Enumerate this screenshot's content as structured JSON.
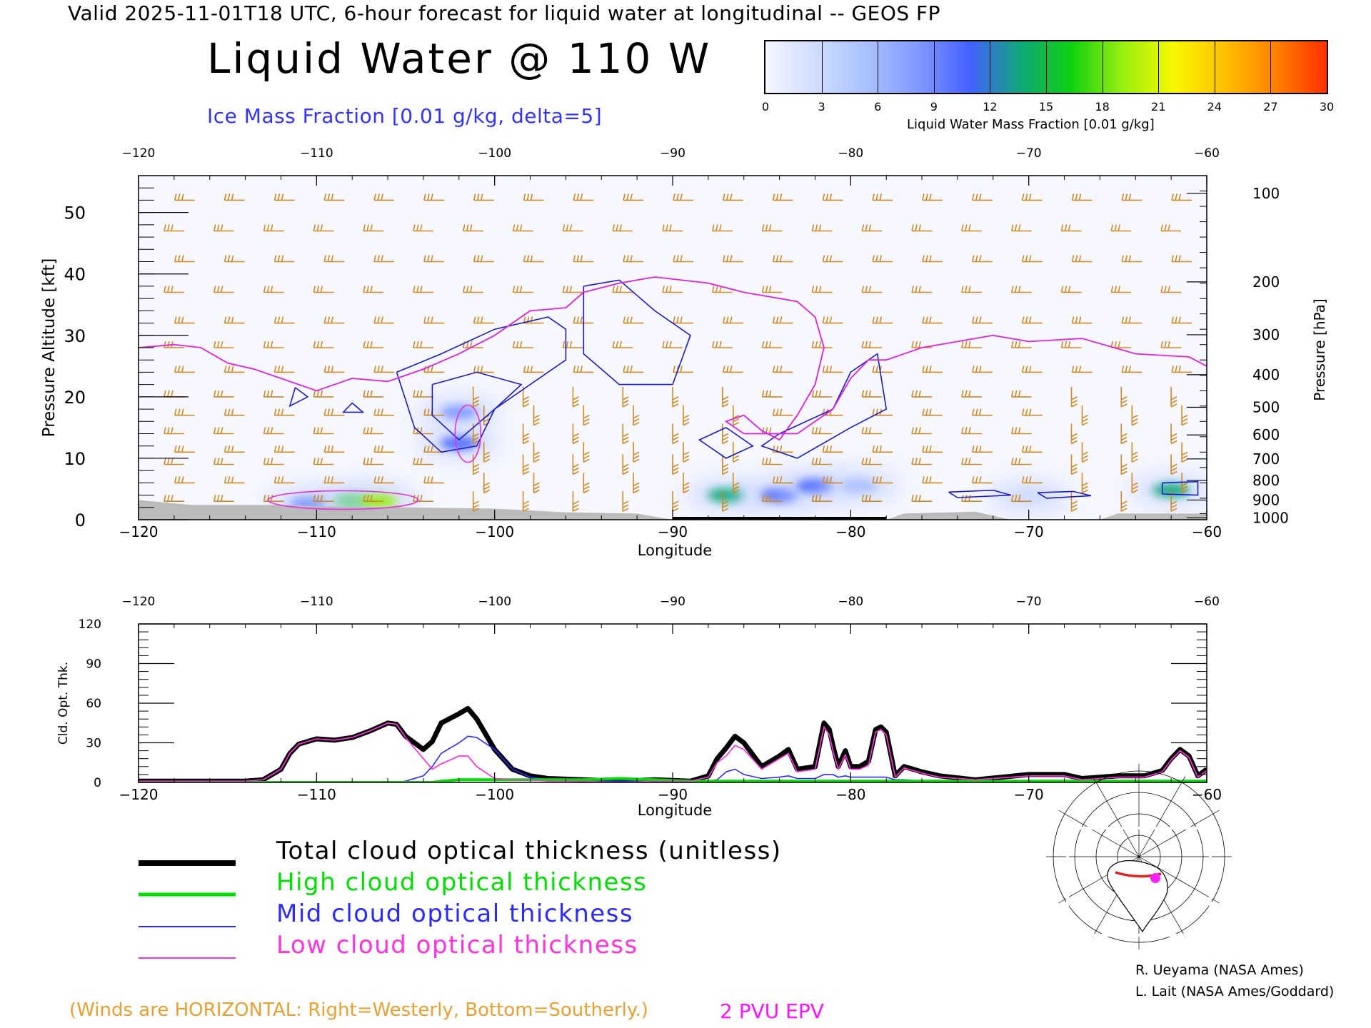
{
  "header": {
    "line": "Valid 2025-11-01T18 UTC, 6-hour forecast for liquid water at longitudinal -- GEOS FP",
    "title": "Liquid Water @ 110 W",
    "ice_label": "Ice Mass Fraction [0.01 g/kg, delta=5]"
  },
  "colorbar": {
    "ticks": [
      "0",
      "3",
      "6",
      "9",
      "12",
      "15",
      "18",
      "21",
      "24",
      "27",
      "30"
    ],
    "unit_label": "Liquid Water Mass Fraction [0.01 g/kg]",
    "colors": [
      "#f4f6ff",
      "#cfdcff",
      "#a8c0ff",
      "#7f99ff",
      "#4461ff",
      "#0fa878",
      "#10d010",
      "#98ef10",
      "#f8f800",
      "#ffc000",
      "#ff8000",
      "#ff3000"
    ]
  },
  "legend": {
    "total": "Total cloud optical thickness (unitless)",
    "high": "High cloud optical thickness",
    "mid": "Mid cloud optical thickness",
    "low": "Low cloud optical thickness"
  },
  "footer": {
    "winds_note": "(Winds are HORIZONTAL: Right=Westerly, Bottom=Southerly.)",
    "epv_label": "2 PVU EPV",
    "credit_1": "R. Ueyama (NASA Ames)",
    "credit_2": "L. Lait (NASA Ames/Goddard)"
  },
  "colors": {
    "total": "#000000",
    "high": "#00e000",
    "mid": "#2a2aff",
    "low": "#ff30e0",
    "epv": "#e020e0",
    "barb": "#d08a20",
    "ice_contour": "#1a1acc",
    "terrain": "#bbbbbb"
  },
  "chart_data": [
    {
      "type": "heatmap",
      "title": "Liquid Water @ 110 W",
      "xlabel": "Longitude",
      "ylabel": "Pressure Altitude [kft]",
      "y2label": "Pressure [hPa]",
      "xlim": [
        -120,
        -60
      ],
      "ylim": [
        0,
        56
      ],
      "x_ticks": [
        "-120",
        "-110",
        "-100",
        "-90",
        "-80",
        "-70",
        "-60"
      ],
      "y_ticks": [
        "0",
        "10",
        "20",
        "30",
        "40",
        "50"
      ],
      "y2_ticks": [
        {
          "label": "100",
          "kft": 53.1
        },
        {
          "label": "200",
          "kft": 38.7
        },
        {
          "label": "300",
          "kft": 30.1
        },
        {
          "label": "400",
          "kft": 23.6
        },
        {
          "label": "500",
          "kft": 18.3
        },
        {
          "label": "600",
          "kft": 13.8
        },
        {
          "label": "700",
          "kft": 9.9
        },
        {
          "label": "800",
          "kft": 6.4
        },
        {
          "label": "900",
          "kft": 3.2
        },
        {
          "label": "1000",
          "kft": 0.3
        }
      ],
      "liquid_water": [
        {
          "lon": -108,
          "kft": 3.0,
          "value": 15
        },
        {
          "lon": -106.5,
          "kft": 3.0,
          "value": 20
        },
        {
          "lon": -110.5,
          "kft": 2.6,
          "value": 8
        },
        {
          "lon": -102,
          "kft": 12.5,
          "value": 12
        },
        {
          "lon": -102,
          "kft": 17.5,
          "value": 8
        },
        {
          "lon": -87,
          "kft": 4.0,
          "value": 14
        },
        {
          "lon": -84,
          "kft": 4.0,
          "value": 10
        },
        {
          "lon": -82,
          "kft": 5.5,
          "value": 12
        },
        {
          "lon": -79.5,
          "kft": 5.5,
          "value": 6
        },
        {
          "lon": -62,
          "kft": 4.8,
          "value": 14
        },
        {
          "lon": -70,
          "kft": 3.8,
          "value": 4
        }
      ],
      "epv_2pvu_kft": [
        {
          "lon": -120,
          "kft": 28
        },
        {
          "lon": -118,
          "kft": 28.5
        },
        {
          "lon": -116.5,
          "kft": 28
        },
        {
          "lon": -115,
          "kft": 25.5
        },
        {
          "lon": -113.5,
          "kft": 24.5
        },
        {
          "lon": -112,
          "kft": 23
        },
        {
          "lon": -110,
          "kft": 21
        },
        {
          "lon": -108,
          "kft": 23
        },
        {
          "lon": -106,
          "kft": 22.5
        },
        {
          "lon": -104,
          "kft": 24.5
        },
        {
          "lon": -102,
          "kft": 27
        },
        {
          "lon": -100,
          "kft": 30
        },
        {
          "lon": -98,
          "kft": 34
        },
        {
          "lon": -96,
          "kft": 34.5
        },
        {
          "lon": -95,
          "kft": 37
        },
        {
          "lon": -93,
          "kft": 38.5
        },
        {
          "lon": -91,
          "kft": 39.5
        },
        {
          "lon": -88,
          "kft": 38.5
        },
        {
          "lon": -86,
          "kft": 37
        },
        {
          "lon": -83,
          "kft": 35.5
        },
        {
          "lon": -82,
          "kft": 33
        },
        {
          "lon": -81.5,
          "kft": 28
        },
        {
          "lon": -82,
          "kft": 22
        },
        {
          "lon": -83,
          "kft": 17
        },
        {
          "lon": -84,
          "kft": 13
        },
        {
          "lon": -85,
          "kft": 14.5
        },
        {
          "lon": -86,
          "kft": 17
        },
        {
          "lon": -87,
          "kft": 16
        },
        {
          "lon": -86,
          "kft": 14
        },
        {
          "lon": -83,
          "kft": 14
        },
        {
          "lon": -81,
          "kft": 18
        },
        {
          "lon": -80,
          "kft": 23
        },
        {
          "lon": -79,
          "kft": 26
        },
        {
          "lon": -78,
          "kft": 26
        },
        {
          "lon": -76,
          "kft": 28
        },
        {
          "lon": -72,
          "kft": 30
        },
        {
          "lon": -70,
          "kft": 29
        },
        {
          "lon": -67,
          "kft": 29.5
        },
        {
          "lon": -64,
          "kft": 27
        },
        {
          "lon": -61,
          "kft": 26.5
        },
        {
          "lon": -60,
          "kft": 25
        }
      ],
      "ice_contours": [
        [
          {
            "lon": -105.5,
            "kft": 24
          },
          {
            "lon": -103,
            "kft": 27
          },
          {
            "lon": -100,
            "kft": 31
          },
          {
            "lon": -97,
            "kft": 33
          },
          {
            "lon": -96,
            "kft": 31
          },
          {
            "lon": -96,
            "kft": 26
          },
          {
            "lon": -98,
            "kft": 22
          },
          {
            "lon": -100,
            "kft": 18
          },
          {
            "lon": -101,
            "kft": 12
          },
          {
            "lon": -103,
            "kft": 11
          },
          {
            "lon": -104.5,
            "kft": 15
          },
          {
            "lon": -105.5,
            "kft": 24
          }
        ],
        [
          {
            "lon": -103.5,
            "kft": 22
          },
          {
            "lon": -101,
            "kft": 24
          },
          {
            "lon": -98.5,
            "kft": 22
          },
          {
            "lon": -100,
            "kft": 18
          },
          {
            "lon": -102,
            "kft": 13
          },
          {
            "lon": -103.5,
            "kft": 17
          },
          {
            "lon": -103.5,
            "kft": 22
          }
        ],
        [
          {
            "lon": -95,
            "kft": 38
          },
          {
            "lon": -93,
            "kft": 39
          },
          {
            "lon": -91,
            "kft": 34
          },
          {
            "lon": -89,
            "kft": 30
          },
          {
            "lon": -90,
            "kft": 22
          },
          {
            "lon": -93,
            "kft": 22
          },
          {
            "lon": -95,
            "kft": 27
          },
          {
            "lon": -95,
            "kft": 38
          }
        ],
        [
          {
            "lon": -87,
            "kft": 15
          },
          {
            "lon": -85.5,
            "kft": 12
          },
          {
            "lon": -87,
            "kft": 10
          },
          {
            "lon": -88.5,
            "kft": 13
          },
          {
            "lon": -87,
            "kft": 15
          }
        ],
        [
          {
            "lon": -84,
            "kft": 14
          },
          {
            "lon": -81,
            "kft": 18
          },
          {
            "lon": -80,
            "kft": 24
          },
          {
            "lon": -78.5,
            "kft": 27
          },
          {
            "lon": -78,
            "kft": 18
          },
          {
            "lon": -80,
            "kft": 15
          },
          {
            "lon": -83,
            "kft": 10
          },
          {
            "lon": -85,
            "kft": 12
          },
          {
            "lon": -84,
            "kft": 14
          }
        ],
        [
          {
            "lon": -111.2,
            "kft": 21.5
          },
          {
            "lon": -110.5,
            "kft": 20
          },
          {
            "lon": -111.5,
            "kft": 18.5
          },
          {
            "lon": -111.2,
            "kft": 21.5
          }
        ],
        [
          {
            "lon": -108,
            "kft": 19
          },
          {
            "lon": -107.4,
            "kft": 17.5
          },
          {
            "lon": -108.5,
            "kft": 17.5
          },
          {
            "lon": -108,
            "kft": 19
          }
        ],
        [
          {
            "lon": -74.5,
            "kft": 4.5
          },
          {
            "lon": -72,
            "kft": 4.8
          },
          {
            "lon": -71,
            "kft": 4
          },
          {
            "lon": -74,
            "kft": 3.6
          },
          {
            "lon": -74.5,
            "kft": 4.5
          }
        ],
        [
          {
            "lon": -69.5,
            "kft": 4.4
          },
          {
            "lon": -67.5,
            "kft": 4.6
          },
          {
            "lon": -66.5,
            "kft": 3.9
          },
          {
            "lon": -69,
            "kft": 3.5
          },
          {
            "lon": -69.5,
            "kft": 4.4
          }
        ],
        [
          {
            "lon": -62.5,
            "kft": 6
          },
          {
            "lon": -60.5,
            "kft": 6.2
          },
          {
            "lon": -60.5,
            "kft": 4
          },
          {
            "lon": -62.5,
            "kft": 4.2
          },
          {
            "lon": -62.5,
            "kft": 6
          }
        ]
      ],
      "terrain_kft": [
        {
          "lon": -120,
          "kft": 3.2
        },
        {
          "lon": -117,
          "kft": 2.4
        },
        {
          "lon": -112,
          "kft": 2.4
        },
        {
          "lon": -110,
          "kft": 2.2
        },
        {
          "lon": -105,
          "kft": 2.0
        },
        {
          "lon": -100,
          "kft": 1.8
        },
        {
          "lon": -96,
          "kft": 1.2
        },
        {
          "lon": -92,
          "kft": 1.0
        },
        {
          "lon": -90,
          "kft": 0.0
        },
        {
          "lon": -78,
          "kft": 0.0
        },
        {
          "lon": -77,
          "kft": 1.0
        },
        {
          "lon": -73,
          "kft": 1.3
        },
        {
          "lon": -71,
          "kft": 0.0
        },
        {
          "lon": -66,
          "kft": 0.0
        },
        {
          "lon": -65,
          "kft": 1.0
        },
        {
          "lon": -60,
          "kft": 1.0
        }
      ]
    },
    {
      "type": "line",
      "xlabel": "Longitude",
      "ylabel": "Cld. Opt. Thk.",
      "xlim": [
        -120,
        -60
      ],
      "ylim": [
        0,
        120
      ],
      "x_ticks": [
        "-120",
        "-110",
        "-100",
        "-90",
        "-80",
        "-70",
        "-60"
      ],
      "y_ticks": [
        "0",
        "30",
        "60",
        "90",
        "120"
      ],
      "x": [
        -120,
        -114,
        -113,
        -112,
        -111.5,
        -111,
        -110,
        -109,
        -108,
        -107,
        -106,
        -105.5,
        -105,
        -104,
        -103.5,
        -103,
        -102,
        -101.5,
        -101,
        -100,
        -99,
        -98,
        -97,
        -95,
        -93,
        -91,
        -89,
        -88,
        -87.5,
        -87,
        -86.5,
        -86,
        -85,
        -84,
        -83.5,
        -83,
        -82,
        -81.5,
        -81.2,
        -81,
        -80.7,
        -80.3,
        -80,
        -79.5,
        -79,
        -78.6,
        -78.3,
        -78,
        -77.5,
        -77,
        -76,
        -75,
        -73,
        -70,
        -68,
        -67,
        -65,
        -63.5,
        -62.5,
        -62,
        -61.5,
        -61,
        -60.5,
        -60
      ],
      "series": [
        {
          "name": "Total cloud optical thickness (unitless)",
          "values": [
            1,
            1,
            2,
            10,
            22,
            29,
            33,
            32,
            34,
            39,
            45,
            44,
            35,
            25,
            31,
            45,
            52,
            56,
            48,
            25,
            10,
            5,
            3,
            2,
            1,
            2,
            1,
            5,
            18,
            26,
            35,
            30,
            12,
            20,
            25,
            10,
            12,
            45,
            40,
            28,
            12,
            24,
            12,
            12,
            16,
            40,
            42,
            38,
            5,
            12,
            8,
            5,
            2,
            6,
            6,
            3,
            5,
            5,
            9,
            18,
            25,
            20,
            5,
            10
          ]
        },
        {
          "name": "High cloud optical thickness",
          "values": [
            0,
            0,
            0,
            0,
            0,
            0,
            0,
            0,
            0,
            0,
            0,
            0,
            0,
            0,
            0,
            1,
            2,
            2,
            2,
            2,
            2,
            2,
            2,
            2,
            3,
            2,
            1,
            1,
            1,
            1,
            1,
            1,
            1,
            1,
            1,
            1,
            1,
            1,
            1,
            1,
            1,
            1,
            1,
            1,
            1,
            1,
            1,
            1,
            1,
            1,
            1,
            1,
            1,
            1,
            1,
            1,
            1,
            1,
            1,
            1,
            1,
            1,
            1,
            1
          ]
        },
        {
          "name": "Mid cloud optical thickness",
          "values": [
            0,
            0,
            0,
            0,
            0,
            0,
            0,
            0,
            0,
            0,
            0,
            0,
            1,
            5,
            12,
            22,
            30,
            35,
            34,
            25,
            10,
            4,
            2,
            1,
            1,
            1,
            1,
            1,
            2,
            8,
            10,
            6,
            3,
            4,
            5,
            3,
            3,
            6,
            6,
            6,
            4,
            5,
            4,
            4,
            4,
            4,
            4,
            4,
            2,
            2,
            1,
            1,
            1,
            1,
            1,
            1,
            1,
            1,
            1,
            1,
            1,
            1,
            1,
            1
          ]
        },
        {
          "name": "Low cloud optical thickness",
          "values": [
            1,
            1,
            2,
            10,
            22,
            29,
            33,
            32,
            34,
            39,
            45,
            44,
            34,
            18,
            10,
            14,
            20,
            20,
            12,
            3,
            2,
            2,
            1,
            1,
            0,
            1,
            1,
            4,
            15,
            20,
            28,
            25,
            10,
            18,
            22,
            8,
            10,
            42,
            36,
            24,
            10,
            21,
            10,
            10,
            13,
            38,
            40,
            36,
            4,
            11,
            7,
            4,
            2,
            5,
            5,
            2,
            4,
            4,
            8,
            17,
            24,
            19,
            4,
            9
          ]
        }
      ]
    }
  ]
}
